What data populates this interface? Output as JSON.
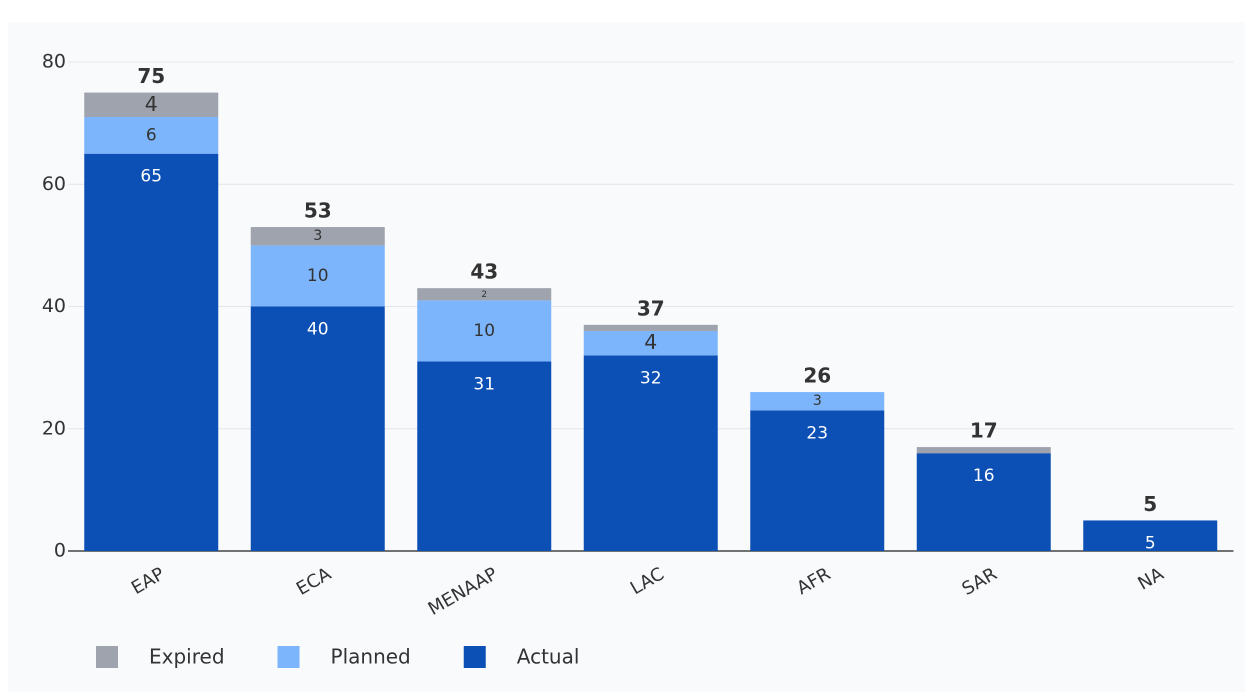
{
  "chart_data": {
    "type": "bar",
    "stacked": true,
    "categories": [
      "EAP",
      "ECA",
      "MENAAP",
      "LAC",
      "AFR",
      "SAR",
      "NA"
    ],
    "series": [
      {
        "name": "Expired",
        "color": "#9ea3ad",
        "values": [
          4,
          3,
          2,
          1,
          0,
          1,
          0
        ]
      },
      {
        "name": "Planned",
        "color": "#7cb5fc",
        "values": [
          6,
          10,
          10,
          4,
          3,
          0,
          0
        ]
      },
      {
        "name": "Actual",
        "color": "#0c4fb5",
        "values": [
          65,
          40,
          31,
          32,
          23,
          16,
          5
        ]
      }
    ],
    "totals": [
      75,
      53,
      43,
      37,
      26,
      17,
      5
    ],
    "ylim": [
      0,
      80
    ],
    "yticks": [
      0,
      20,
      40,
      60,
      80
    ],
    "grid": true,
    "legend": "bottom-left"
  }
}
